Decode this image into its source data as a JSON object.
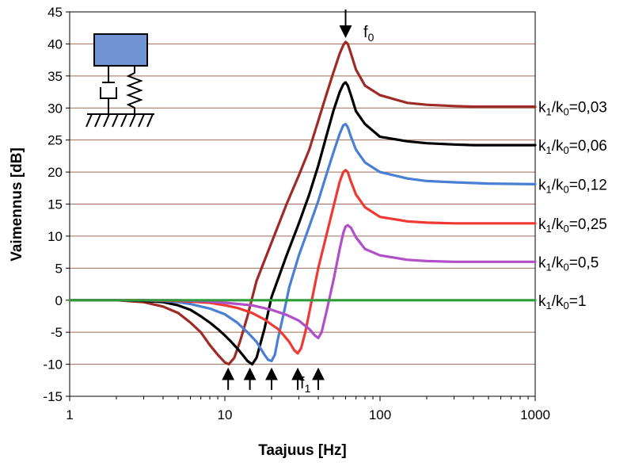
{
  "chart_data": {
    "type": "line",
    "title": "",
    "xlabel": "Taajuus [Hz]",
    "ylabel": "Vaimennus [dB]",
    "x_scale": "log",
    "xlim": [
      1,
      1000
    ],
    "ylim": [
      -15,
      45
    ],
    "x_ticks": [
      1,
      10,
      100,
      1000
    ],
    "x_tick_labels": [
      "1",
      "10",
      "100",
      "1000"
    ],
    "y_ticks": [
      -15,
      -10,
      -5,
      0,
      5,
      10,
      15,
      20,
      25,
      30,
      35,
      40,
      45
    ],
    "y_tick_labels": [
      "-15",
      "-10",
      "-5",
      "0",
      "5",
      "10",
      "15",
      "20",
      "25",
      "30",
      "35",
      "40",
      "45"
    ],
    "grid": "horizontal",
    "legend": "none",
    "series": [
      {
        "name": "k1/k0=0,03",
        "label_main": "k",
        "label_sub1": "1",
        "label_mid": "/k",
        "label_sub2": "0",
        "label_tail": "=0,03",
        "color": "#9e2b25",
        "x": [
          1,
          2,
          3,
          4,
          5,
          6,
          7,
          8,
          9,
          10,
          10.6,
          11.5,
          12.5,
          14,
          16,
          20,
          25,
          30,
          35,
          40,
          45,
          50,
          55,
          58,
          60,
          62,
          65,
          70,
          80,
          100,
          150,
          200,
          300,
          400,
          1000
        ],
        "y": [
          0,
          0,
          -0.3,
          -1,
          -2,
          -3.5,
          -5,
          -7,
          -8.5,
          -9.7,
          -10,
          -9,
          -6.5,
          -2.5,
          3,
          9,
          15,
          19.5,
          23.5,
          28,
          32,
          35.5,
          38.5,
          39.8,
          40.3,
          40,
          38.5,
          36,
          33.5,
          32,
          30.8,
          30.5,
          30.3,
          30.2,
          30.2
        ]
      },
      {
        "name": "k1/k0=0,06",
        "label_main": "k",
        "label_sub1": "1",
        "label_mid": "/k",
        "label_sub2": "0",
        "label_tail": "=0,06",
        "color": "#000000",
        "x": [
          1,
          2,
          3,
          4,
          5,
          6,
          7,
          8,
          9,
          10,
          11,
          12,
          13,
          14,
          15,
          16,
          18,
          20,
          25,
          30,
          35,
          40,
          45,
          50,
          55,
          58,
          60,
          62,
          65,
          70,
          80,
          100,
          150,
          200,
          300,
          400,
          1000
        ],
        "y": [
          0,
          0,
          -0.1,
          -0.3,
          -0.8,
          -1.5,
          -2.5,
          -3.5,
          -4.5,
          -5.5,
          -6.5,
          -7.5,
          -8.5,
          -9.5,
          -10,
          -9,
          -4.5,
          0.5,
          7,
          12,
          16.5,
          21,
          25.5,
          29.5,
          32.5,
          33.7,
          34,
          33.5,
          32,
          29.5,
          27.5,
          25.5,
          24.8,
          24.5,
          24.3,
          24.2,
          24.2
        ]
      },
      {
        "name": "k1/k0=0,12",
        "label_main": "k",
        "label_sub1": "1",
        "label_mid": "/k",
        "label_sub2": "0",
        "label_tail": "=0,12",
        "color": "#4a7fd4",
        "x": [
          1,
          2,
          3,
          4,
          5,
          6,
          8,
          10,
          12,
          14,
          16,
          18,
          19,
          20,
          21,
          22,
          24,
          26,
          30,
          35,
          40,
          45,
          50,
          55,
          58,
          60,
          62,
          65,
          70,
          80,
          100,
          150,
          200,
          300,
          500,
          1000
        ],
        "y": [
          0,
          0,
          0,
          -0.1,
          -0.3,
          -0.6,
          -1.3,
          -2.2,
          -3.5,
          -5,
          -6.5,
          -8.5,
          -9.3,
          -9.5,
          -8.5,
          -6,
          -2,
          2,
          7,
          11.5,
          15.5,
          19.5,
          23,
          26,
          27.3,
          27.5,
          27,
          25.5,
          23.5,
          21.5,
          20,
          19,
          18.6,
          18.4,
          18.2,
          18.1
        ]
      },
      {
        "name": "k1/k0=0,25",
        "label_main": "k",
        "label_sub1": "1",
        "label_mid": "/k",
        "label_sub2": "0",
        "label_tail": "=0,25",
        "color": "#ef3a33",
        "x": [
          1,
          3,
          5,
          8,
          10,
          12,
          15,
          18,
          20,
          22,
          24,
          26,
          28,
          29.5,
          31,
          33,
          36,
          40,
          45,
          50,
          55,
          58,
          60,
          62,
          65,
          70,
          80,
          100,
          150,
          200,
          300,
          500,
          1000
        ],
        "y": [
          0,
          0,
          -0.1,
          -0.4,
          -0.8,
          -1.2,
          -2,
          -3,
          -3.8,
          -4.5,
          -5.5,
          -6.5,
          -7.8,
          -8.3,
          -7.5,
          -5,
          -0.5,
          5,
          10,
          14.5,
          18.5,
          20,
          20.3,
          20,
          18.5,
          16.5,
          14.5,
          13,
          12.3,
          12.1,
          12,
          12,
          12
        ]
      },
      {
        "name": "k1/k0=0,5",
        "label_main": "k",
        "label_sub1": "1",
        "label_mid": "/k",
        "label_sub2": "0",
        "label_tail": "=0,5",
        "color": "#b04fc8",
        "x": [
          1,
          3,
          5,
          8,
          10,
          15,
          20,
          25,
          30,
          35,
          38,
          40,
          42,
          45,
          50,
          55,
          58,
          60,
          62,
          65,
          70,
          80,
          100,
          150,
          200,
          300,
          500,
          1000
        ],
        "y": [
          0,
          0,
          0,
          -0.2,
          -0.4,
          -0.8,
          -1.5,
          -2.3,
          -3.2,
          -4.5,
          -5.5,
          -5.9,
          -5,
          -2,
          3,
          8,
          10.5,
          11.5,
          11.7,
          11.3,
          9.8,
          8,
          7,
          6.3,
          6.1,
          6,
          6,
          6
        ]
      },
      {
        "name": "k1/k0=1",
        "label_main": "k",
        "label_sub1": "1",
        "label_mid": "/k",
        "label_sub2": "0",
        "label_tail": "=1",
        "color": "#2e9d3a",
        "x": [
          1,
          1000
        ],
        "y": [
          0,
          0
        ]
      }
    ],
    "annotations": {
      "f0_main": "f",
      "f0_sub": "0",
      "f1_main": "f",
      "f1_sub": "1",
      "f0_marker_x": 60,
      "minimum_marker_x": [
        10.5,
        14.5,
        20,
        29.5,
        40
      ]
    },
    "inset": {
      "mass_color": "#6f93d3"
    }
  }
}
